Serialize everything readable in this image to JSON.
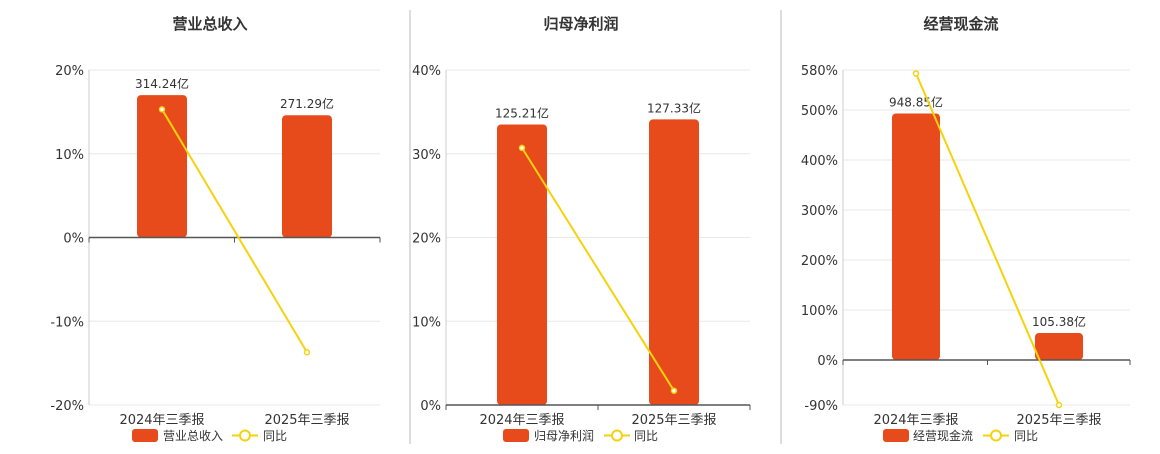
{
  "colors": {
    "bar": "#E84B1B",
    "line": "#F5D20E",
    "grid": "#E8E8E8",
    "axis": "#555555",
    "divider": "#BBBBBB",
    "text": "#333333"
  },
  "chart_data": [
    {
      "type": "bar",
      "title": "营业总收入",
      "categories": [
        "2024年三季报",
        "2025年三季报"
      ],
      "y_ticks": [
        "20%",
        "10%",
        "0%",
        "-10%",
        "-20%"
      ],
      "ylim": [
        -20,
        20
      ],
      "bar_values": [
        17,
        14.6
      ],
      "bar_labels": [
        "314.24亿",
        "271.29亿"
      ],
      "yoy_values": [
        15.3,
        -13.7
      ],
      "legend": [
        "营业总收入",
        "同比"
      ]
    },
    {
      "type": "bar",
      "title": "归母净利润",
      "categories": [
        "2024年三季报",
        "2025年三季报"
      ],
      "y_ticks": [
        "40%",
        "30%",
        "20%",
        "10%",
        "0%"
      ],
      "ylim": [
        0,
        40
      ],
      "bar_values": [
        33.5,
        34.1
      ],
      "bar_labels": [
        "125.21亿",
        "127.33亿"
      ],
      "yoy_values": [
        30.7,
        1.7
      ],
      "legend": [
        "归母净利润",
        "同比"
      ]
    },
    {
      "type": "bar",
      "title": "经营现金流",
      "categories": [
        "2024年三季报",
        "2025年三季报"
      ],
      "y_ticks": [
        "580%",
        "500%",
        "400%",
        "300%",
        "200%",
        "100%",
        "0%",
        "-90%"
      ],
      "y_tick_values": [
        580,
        500,
        400,
        300,
        200,
        100,
        0,
        -90
      ],
      "ylim": [
        -90,
        580
      ],
      "bar_values": [
        493,
        54
      ],
      "bar_labels": [
        "948.85亿",
        "105.38亿"
      ],
      "yoy_values": [
        573,
        -90
      ],
      "legend": [
        "经营现金流",
        "同比"
      ]
    }
  ]
}
